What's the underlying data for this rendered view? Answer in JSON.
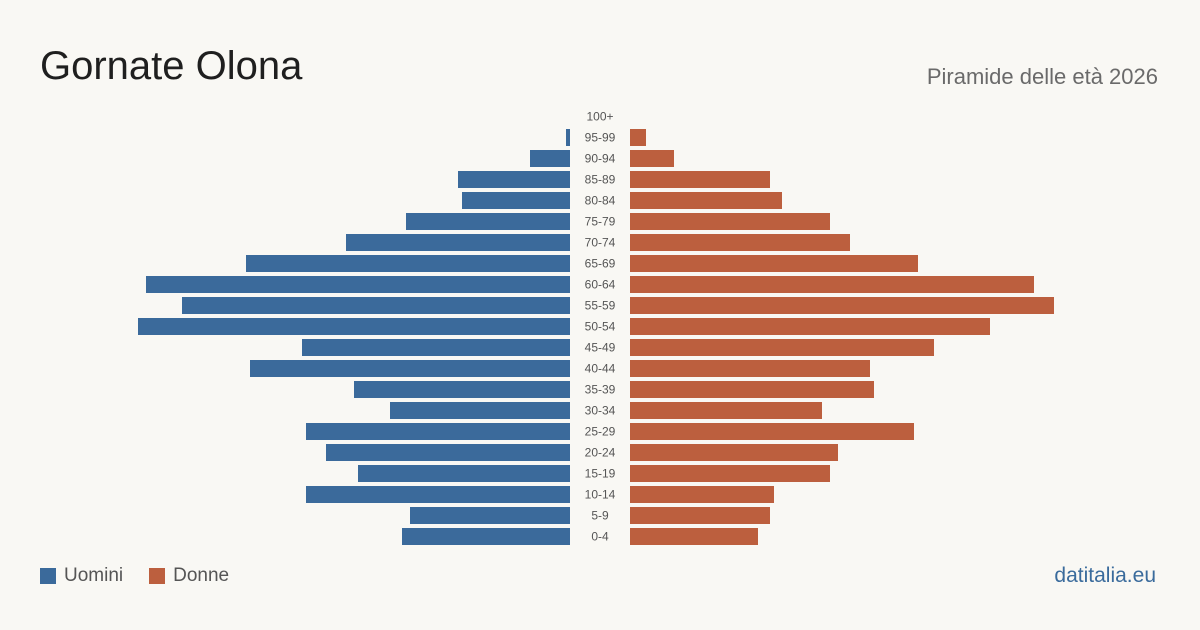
{
  "header": {
    "title": "Gornate Olona",
    "subtitle": "Piramide delle età 2026"
  },
  "legend": {
    "male_label": "Uomini",
    "female_label": "Donne"
  },
  "footer": {
    "source": "datitalia.eu"
  },
  "colors": {
    "male": "#3b6a9b",
    "female": "#bc5f3e",
    "background": "#f9f8f4"
  },
  "chart_data": {
    "type": "bar",
    "orientation": "horizontal-pyramid",
    "categories": [
      "100+",
      "95-99",
      "90-94",
      "85-89",
      "80-84",
      "75-79",
      "70-74",
      "65-69",
      "60-64",
      "55-59",
      "50-54",
      "45-49",
      "40-44",
      "35-39",
      "30-34",
      "25-29",
      "20-24",
      "15-19",
      "10-14",
      "5-9",
      "0-4"
    ],
    "series": [
      {
        "name": "Uomini",
        "values": [
          0,
          1,
          10,
          28,
          27,
          41,
          56,
          81,
          106,
          97,
          108,
          67,
          80,
          54,
          45,
          66,
          61,
          53,
          66,
          40,
          42
        ]
      },
      {
        "name": "Donne",
        "values": [
          0,
          4,
          11,
          35,
          38,
          50,
          55,
          72,
          101,
          106,
          90,
          76,
          60,
          61,
          48,
          71,
          52,
          50,
          36,
          35,
          32
        ]
      }
    ],
    "legend_position": "bottom-left",
    "grid": false
  }
}
